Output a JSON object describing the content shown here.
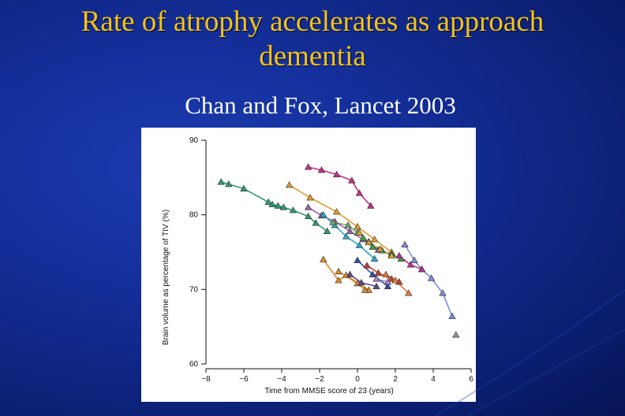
{
  "slide": {
    "title_line1": "Rate of atrophy accelerates as approach",
    "title_line2": "dementia",
    "subtitle": "Chan and Fox, Lancet 2003",
    "title_color": "#f2c318",
    "background_color": "#142f9a"
  },
  "chart_data": {
    "type": "scatter",
    "title": "",
    "xlabel": "Time from MMSE score of 23 (years)",
    "ylabel": "Brain volume as percentage of TIV (%)",
    "xlim": [
      -8,
      6
    ],
    "ylim": [
      60,
      90
    ],
    "xticks": [
      "−8",
      "−6",
      "−4",
      "−2",
      "0",
      "2",
      "4",
      "6"
    ],
    "xtick_values": [
      -8,
      -6,
      -4,
      -2,
      0,
      2,
      4,
      6
    ],
    "yticks": [
      "60",
      "70",
      "80",
      "90"
    ],
    "ytick_values": [
      60,
      70,
      80,
      90
    ],
    "grid": false,
    "marker": "triangle",
    "series": [
      {
        "color": "#2e9a6c",
        "x": [
          -7.2,
          -6.8,
          -6.0,
          -4.7,
          -4.5,
          -4.2,
          -3.9,
          -3.4,
          -2.6,
          -2.2,
          -1.6
        ],
        "y": [
          84.4,
          84.1,
          83.5,
          81.7,
          81.4,
          81.2,
          81.0,
          80.6,
          79.8,
          78.9,
          77.8
        ]
      },
      {
        "color": "#c2307f",
        "x": [
          -2.6,
          -1.9,
          -1.1,
          -0.3,
          0.1,
          0.7
        ],
        "y": [
          86.4,
          86.0,
          85.4,
          84.6,
          82.9,
          81.2
        ]
      },
      {
        "color": "#e39a2e",
        "x": [
          -3.6,
          -2.5,
          -1.1,
          0.0,
          0.9,
          1.8
        ],
        "y": [
          84.0,
          82.3,
          80.4,
          78.4,
          76.7,
          75.0
        ]
      },
      {
        "color": "#9a5fa8",
        "x": [
          -2.6,
          -1.9,
          -1.2,
          -0.4,
          0.3,
          1.1
        ],
        "y": [
          81.0,
          79.9,
          79.1,
          77.8,
          76.7,
          75.3
        ]
      },
      {
        "color": "#2aa6c8",
        "x": [
          -1.8,
          -1.2,
          -0.6,
          0.1,
          0.9
        ],
        "y": [
          80.0,
          78.6,
          77.1,
          75.9,
          74.1
        ]
      },
      {
        "color": "#6aa86b",
        "x": [
          -1.3,
          -0.5,
          0.0,
          0.6
        ],
        "y": [
          79.0,
          78.6,
          77.6,
          76.4
        ]
      },
      {
        "color": "#3aa04a",
        "x": [
          0.3,
          0.8,
          1.3,
          1.8,
          2.3
        ],
        "y": [
          76.9,
          75.7,
          75.2,
          74.7,
          74.1
        ]
      },
      {
        "color": "#d4a030",
        "x": [
          0.1,
          0.6,
          1.2,
          1.8
        ],
        "y": [
          77.6,
          76.3,
          75.4,
          74.5
        ]
      },
      {
        "color": "#7a8ed4",
        "x": [
          2.5,
          3.0,
          3.4,
          3.9,
          4.5,
          5.0
        ],
        "y": [
          76.0,
          73.9,
          72.7,
          71.5,
          69.5,
          66.4
        ]
      },
      {
        "color": "#8a8fa0",
        "x": [
          5.2
        ],
        "y": [
          63.9
        ]
      },
      {
        "color": "#b8308a",
        "x": [
          2.2,
          2.8,
          3.4
        ],
        "y": [
          74.5,
          73.3,
          72.7
        ]
      },
      {
        "color": "#e08a2a",
        "x": [
          -1.8,
          -1.0,
          -0.6,
          0.6
        ],
        "y": [
          74.0,
          71.2,
          71.9,
          69.9
        ]
      },
      {
        "color": "#d88a2a",
        "x": [
          -1.0,
          0.0,
          0.4
        ],
        "y": [
          72.4,
          70.8,
          69.9
        ]
      },
      {
        "color": "#5a4a90",
        "x": [
          -0.4,
          0.2,
          1.0
        ],
        "y": [
          72.0,
          70.9,
          70.4
        ]
      },
      {
        "color": "#c8402a",
        "x": [
          0.5,
          1.1,
          1.8,
          2.2
        ],
        "y": [
          73.2,
          72.2,
          71.4,
          71.0
        ]
      },
      {
        "color": "#2f4fa8",
        "x": [
          0.0,
          0.8,
          1.6
        ],
        "y": [
          73.9,
          72.0,
          70.4
        ]
      },
      {
        "color": "#e07a3a",
        "x": [
          1.5,
          2.0,
          2.7
        ],
        "y": [
          72.0,
          71.2,
          69.5
        ]
      },
      {
        "color": "#a97fd0",
        "x": [
          1.0,
          1.6
        ],
        "y": [
          71.4,
          71.0
        ]
      }
    ]
  }
}
